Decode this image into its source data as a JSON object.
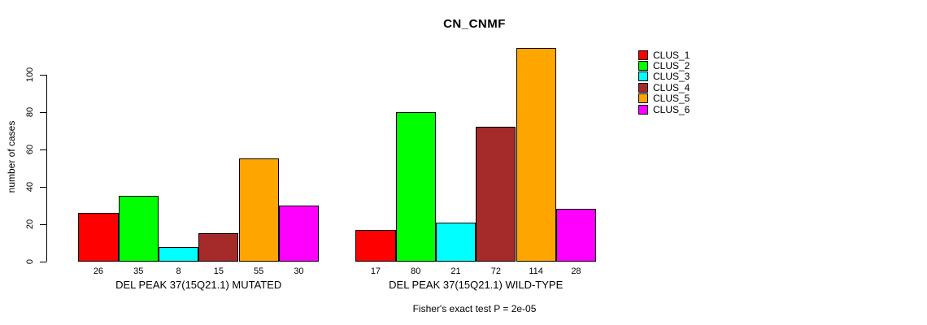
{
  "title": "CN_CNMF",
  "chart_data": {
    "type": "bar",
    "title": "CN_CNMF",
    "ylabel": "number of cases",
    "ylim": [
      0,
      115
    ],
    "yticks": [
      0,
      20,
      40,
      60,
      80,
      100
    ],
    "grid": false,
    "legend_position": "top-right",
    "categories": [
      "DEL PEAK 37(15Q21.1) MUTATED",
      "DEL PEAK 37(15Q21.1) WILD-TYPE"
    ],
    "series": [
      {
        "name": "CLUS_1",
        "color": "#ff0000",
        "values": [
          26,
          17
        ]
      },
      {
        "name": "CLUS_2",
        "color": "#00ff00",
        "values": [
          35,
          80
        ]
      },
      {
        "name": "CLUS_3",
        "color": "#00ffff",
        "values": [
          8,
          21
        ]
      },
      {
        "name": "CLUS_4",
        "color": "#a52a2a",
        "values": [
          15,
          72
        ]
      },
      {
        "name": "CLUS_5",
        "color": "#ffa500",
        "values": [
          55,
          114
        ]
      },
      {
        "name": "CLUS_6",
        "color": "#ff00ff",
        "values": [
          30,
          28
        ]
      }
    ],
    "annotation": "Fisher's exact test P = 2e-05",
    "axis_color": "#000000",
    "background_color": "#ffffff"
  }
}
